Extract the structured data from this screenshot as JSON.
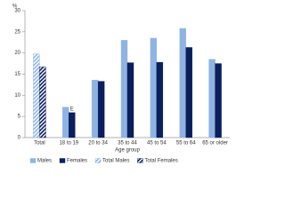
{
  "chart_data": {
    "type": "bar",
    "y_label": "%",
    "x_label": "Age group",
    "categories": [
      "Total",
      "18 to 19",
      "20 to 34",
      "35 to 44",
      "45 to 54",
      "55 to 64",
      "65 or older"
    ],
    "series": [
      {
        "name": "Males",
        "color": "#8fb4e3",
        "values": [
          null,
          7.2,
          13.6,
          23.0,
          23.5,
          25.8,
          18.5
        ]
      },
      {
        "name": "Females",
        "color": "#0b1f5c",
        "values": [
          null,
          5.9,
          13.3,
          17.7,
          17.8,
          21.3,
          17.5
        ]
      },
      {
        "name": "Total Males",
        "color": "#8fb4e3",
        "hatch": true,
        "values": [
          19.8,
          null,
          null,
          null,
          null,
          null,
          null
        ]
      },
      {
        "name": "Total Females",
        "color": "#0b1f5c",
        "hatch": true,
        "values": [
          16.7,
          null,
          null,
          null,
          null,
          null,
          null
        ]
      }
    ],
    "annotations": [
      {
        "text": "E",
        "category": "18 to 19",
        "series": "Females"
      }
    ],
    "ylim": [
      0,
      30
    ],
    "yticks": [
      0,
      5,
      10,
      15,
      20,
      25,
      30
    ],
    "grid": false
  }
}
